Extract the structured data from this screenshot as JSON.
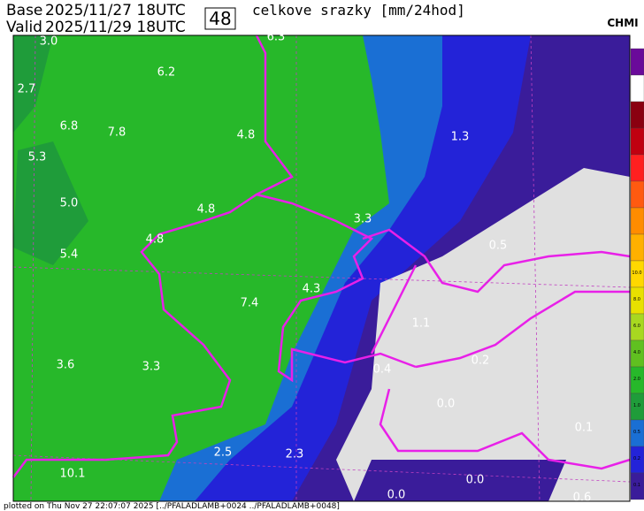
{
  "header": {
    "base_label": "Base",
    "base_time": "2025/11/27 18UTC",
    "valid_label": "Valid",
    "valid_time": "2025/11/29 18UTC",
    "step": "48",
    "title": "celkove srazky [mm/24hod]",
    "logo": "CHMI"
  },
  "map_labels": [
    "3.0",
    "6.3",
    "6.2",
    "2.7",
    "6.8",
    "7.8",
    "4.8",
    "1.3",
    "5.3",
    "5.0",
    "4.8",
    "4.8",
    "3.3",
    "0.5",
    "5.4",
    "4.3",
    "7.4",
    "1.1",
    "3.6",
    "3.3",
    "0.4",
    "0.2",
    "0.0",
    "0.1",
    "2.5",
    "2.3",
    "10.1",
    "0.0",
    "0.0",
    "0.6"
  ],
  "colorbar": {
    "labels": [
      "10.0",
      "8.0",
      "6.0",
      "4.0",
      "2.0",
      "1.0",
      "0.5",
      "0.2",
      "0.1"
    ]
  },
  "footer": "plotted on Thu Nov 27 22:07:07 2025 [../PFALADLAMB+0024 ../PFALADLAMB+0048]"
}
